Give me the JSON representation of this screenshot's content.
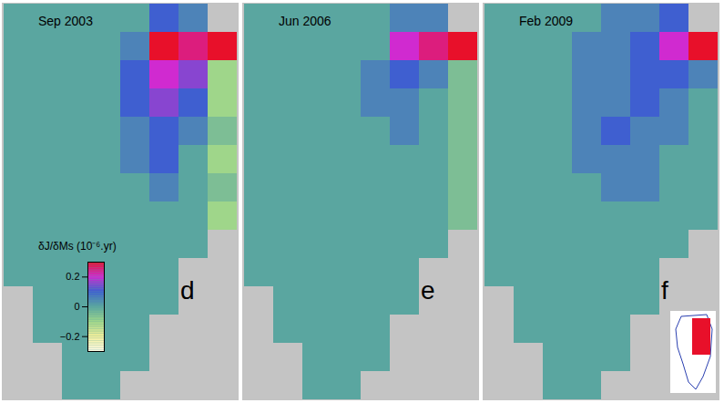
{
  "chart_data": [
    {
      "type": "heatmap",
      "title": "Sep 2003",
      "panel_label": "d",
      "tick_labels": false,
      "colorbar": {
        "label": "δJ/δMs (10⁻⁶.yr)",
        "range": [
          -0.3,
          0.3
        ],
        "ticks": [
          0.2,
          0,
          {
            "value": -0.2,
            "label": "−0.2"
          }
        ]
      },
      "cells": [
        [
          0,
          0,
          0,
          0,
          0,
          0.1,
          0.05,
          null
        ],
        [
          0,
          0,
          0,
          0,
          0.05,
          0.3,
          0.25,
          0.3
        ],
        [
          0,
          0,
          0,
          0,
          0.1,
          0.2,
          0.15,
          -0.1
        ],
        [
          0,
          0,
          0,
          0,
          0.1,
          0.15,
          0.1,
          -0.1
        ],
        [
          0,
          0,
          0,
          0,
          0.05,
          0.1,
          0.05,
          -0.05
        ],
        [
          0,
          0,
          0,
          0,
          0.05,
          0.1,
          0,
          -0.1
        ],
        [
          0,
          0,
          0,
          0,
          0,
          0.05,
          0,
          -0.05
        ],
        [
          0,
          0,
          0,
          0,
          0,
          0,
          0,
          -0.1
        ],
        [
          0,
          0,
          0,
          0,
          0,
          0,
          0,
          null
        ],
        [
          0,
          0,
          0,
          0,
          0,
          0,
          null,
          null
        ],
        [
          null,
          0,
          0,
          0,
          0,
          0,
          null,
          null
        ],
        [
          null,
          0,
          0,
          0,
          0,
          null,
          null,
          null
        ],
        [
          null,
          null,
          0,
          0,
          0,
          null,
          null,
          null
        ],
        [
          null,
          null,
          0,
          0,
          null,
          null,
          null,
          null
        ]
      ]
    },
    {
      "type": "heatmap",
      "title": "Jun 2006",
      "panel_label": "e",
      "tick_labels": false,
      "cells": [
        [
          0,
          0,
          0,
          0,
          0,
          0.05,
          0.05,
          null
        ],
        [
          0,
          0,
          0,
          0,
          0,
          0.2,
          0.25,
          0.3
        ],
        [
          0,
          0,
          0,
          0,
          0.05,
          0.1,
          0.05,
          -0.05
        ],
        [
          0,
          0,
          0,
          0,
          0.05,
          0.05,
          0,
          -0.05
        ],
        [
          0,
          0,
          0,
          0,
          0,
          0.05,
          0,
          -0.05
        ],
        [
          0,
          0,
          0,
          0,
          0,
          0,
          0,
          -0.05
        ],
        [
          0,
          0,
          0,
          0,
          0,
          0,
          0,
          -0.05
        ],
        [
          0,
          0,
          0,
          0,
          0,
          0,
          0,
          -0.05
        ],
        [
          0,
          0,
          0,
          0,
          0,
          0,
          0,
          null
        ],
        [
          0,
          0,
          0,
          0,
          0,
          0,
          null,
          null
        ],
        [
          null,
          0,
          0,
          0,
          0,
          0,
          null,
          null
        ],
        [
          null,
          0,
          0,
          0,
          0,
          null,
          null,
          null
        ],
        [
          null,
          null,
          0,
          0,
          0,
          null,
          null,
          null
        ],
        [
          null,
          null,
          0,
          0,
          null,
          null,
          null,
          null
        ]
      ]
    },
    {
      "type": "heatmap",
      "title": "Feb 2009",
      "panel_label": "f",
      "tick_labels": false,
      "cells": [
        [
          0,
          0,
          0,
          0,
          0.05,
          0.05,
          0.1,
          null
        ],
        [
          0,
          0,
          0,
          0.05,
          0.05,
          0.1,
          0.2,
          0.3
        ],
        [
          0,
          0,
          0,
          0.05,
          0.05,
          0.1,
          0.1,
          0.05
        ],
        [
          0,
          0,
          0,
          0.05,
          0.05,
          0.1,
          0.05,
          0
        ],
        [
          0,
          0,
          0,
          0.05,
          0.1,
          0.05,
          0.05,
          0
        ],
        [
          0,
          0,
          0,
          0.05,
          0.05,
          0.05,
          0,
          0
        ],
        [
          0,
          0,
          0,
          0,
          0.05,
          0.05,
          0,
          0
        ],
        [
          0,
          0,
          0,
          0,
          0,
          0,
          0,
          0
        ],
        [
          0,
          0,
          0,
          0,
          0,
          0,
          0,
          null
        ],
        [
          0,
          0,
          0,
          0,
          0,
          0,
          null,
          null
        ],
        [
          null,
          0,
          0,
          0,
          0,
          0,
          null,
          null
        ],
        [
          null,
          0,
          0,
          0,
          0,
          null,
          null,
          null
        ],
        [
          null,
          null,
          0,
          0,
          0,
          null,
          null,
          null
        ],
        [
          null,
          null,
          0,
          0,
          null,
          null,
          null,
          null
        ]
      ]
    }
  ]
}
